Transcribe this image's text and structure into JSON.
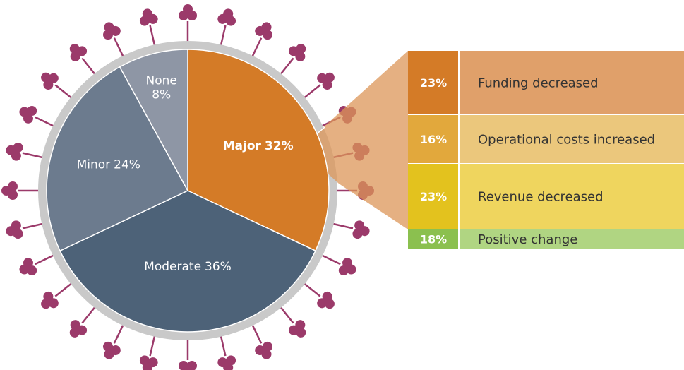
{
  "chart_data": [
    {
      "type": "pie",
      "categories": [
        "Major",
        "Moderate",
        "Minor",
        "None"
      ],
      "values": [
        32,
        36,
        24,
        8
      ],
      "value_labels": [
        "32%",
        "36%",
        "24%",
        "8%"
      ],
      "colors": [
        "#d47b27",
        "#4d6278",
        "#6c7b8e",
        "#8e96a5"
      ]
    },
    {
      "type": "breakdown",
      "categories": [
        "Funding decreased",
        "Operational costs increased",
        "Revenue decreased",
        "Positive change"
      ],
      "values": [
        23,
        16,
        23,
        18
      ],
      "value_labels": [
        "23%",
        "16%",
        "23%",
        "18%"
      ],
      "colors": [
        "#d47b27",
        "#e2a83c",
        "#e3c21e",
        "#8bc04f"
      ],
      "row_colors": [
        "#e0a06a",
        "#ebc77c",
        "#efd55e",
        "#b0d582"
      ]
    }
  ]
}
